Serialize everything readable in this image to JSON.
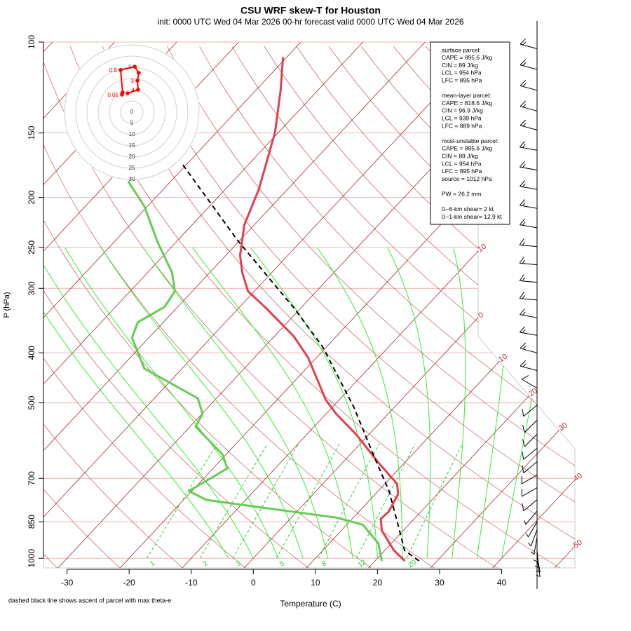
{
  "chart_data": {
    "type": "skewt",
    "title": "CSU WRF skew-T for Houston",
    "subtitle": "init: 0000 UTC Wed 04 Mar 2026     00-hr forecast valid 0000 UTC Wed 04 Mar 2026",
    "xlabel": "Temperature (C)",
    "ylabel": "P (hPa)",
    "note": "dashed black line shows ascent of parcel with max theta-e",
    "xlim": [
      -33.8,
      51.8
    ],
    "ylim": [
      1044,
      100
    ],
    "log_y": true,
    "xticks": [
      -30,
      -20,
      -10,
      0,
      10,
      20,
      30,
      40
    ],
    "yticks": [
      100,
      150,
      200,
      250,
      300,
      400,
      500,
      700,
      850,
      1000
    ],
    "isotherm_labels": [
      -10,
      0,
      10,
      20,
      30,
      40,
      50
    ],
    "mixing_ratio_labels": [
      1,
      2,
      3,
      5,
      8,
      12,
      20
    ],
    "temperature": {
      "color": "#e0404f",
      "p": [
        1012,
        966,
        885,
        839,
        813,
        752,
        718,
        653,
        577,
        525,
        493,
        409,
        372,
        328,
        304,
        280,
        259,
        226,
        193,
        150,
        124,
        107
      ],
      "values": [
        24.8,
        21.5,
        16.6,
        14.6,
        14.8,
        13.7,
        12.0,
        5.8,
        -1.9,
        -8.4,
        -12.2,
        -21.3,
        -26.8,
        -35.5,
        -41.0,
        -44.7,
        -47.7,
        -51.6,
        -54.6,
        -60.5,
        -66.0,
        -70.6
      ]
    },
    "dewpoint": {
      "color": "#66cc55",
      "p": [
        1012,
        936,
        861,
        834,
        771,
        741,
        670,
        629,
        556,
        525,
        490,
        429,
        374,
        349,
        326,
        304,
        280,
        244,
        208,
        186
      ],
      "values": [
        21.1,
        17.9,
        12.6,
        7.2,
        -16.3,
        -20.5,
        -17.7,
        -20.6,
        -29.1,
        -29.9,
        -33.0,
        -46.1,
        -52.7,
        -54.1,
        -52.1,
        -52.8,
        -56.0,
        -63.0,
        -70.5,
        -76.9
      ]
    },
    "parcel": {
      "color": "#000000",
      "dashed": true,
      "p": [
        1012,
        966,
        880,
        740,
        645,
        509,
        389,
        328,
        242,
        171
      ],
      "values": [
        27.1,
        23.2,
        19.2,
        11.7,
        4.9,
        -6.6,
        -20.7,
        -31.0,
        -50.4,
        -71.2
      ]
    },
    "hodograph": {
      "color": "#ff0000",
      "rings": [
        0,
        5,
        10,
        15,
        20,
        25,
        30
      ],
      "u": [
        -4.4,
        -4.1,
        -5.0,
        1.3,
        3.1,
        2.5,
        2.8,
        -1.9
      ],
      "v": [
        7.8,
        8.8,
        18.8,
        20.3,
        17.5,
        14.1,
        10.0,
        8.4
      ],
      "labels": [
        "0.05",
        null,
        "0.5",
        "1",
        null,
        "3",
        "4",
        null
      ]
    },
    "winds": {
      "p": [
        103,
        113,
        124,
        136,
        148,
        162,
        177,
        193,
        210,
        229,
        249,
        270,
        292,
        316,
        342,
        370,
        400,
        433,
        468,
        505,
        540,
        575,
        612,
        650,
        690,
        730,
        770,
        810,
        850,
        880,
        910,
        940,
        965,
        985,
        1005
      ],
      "direction": [
        285,
        285,
        285,
        285,
        285,
        280,
        280,
        280,
        280,
        280,
        275,
        275,
        275,
        275,
        280,
        280,
        285,
        285,
        300,
        230,
        225,
        225,
        230,
        230,
        240,
        240,
        230,
        220,
        210,
        200,
        190,
        180,
        175,
        170,
        170
      ],
      "speed": [
        15,
        15,
        15,
        15,
        15,
        15,
        15,
        15,
        15,
        15,
        15,
        15,
        15,
        15,
        15,
        15,
        15,
        15,
        10,
        10,
        10,
        10,
        10,
        10,
        10,
        10,
        10,
        5,
        5,
        5,
        5,
        5,
        5,
        5,
        5
      ]
    },
    "info": [
      [
        "surface parcel:",
        "CAPE = 895.6 J/kg",
        "CIN = 89 J/kg",
        "LCL = 954 hPa",
        "LFC = 895 hPa"
      ],
      [
        "mean-layer parcel:",
        "CAPE = 818.6 J/kg",
        "CIN = 96.9 J/kg",
        "LCL = 939 hPa",
        "LFC = 889 hPa"
      ],
      [
        "most-unstable parcel:",
        "CAPE = 895.6 J/kg",
        "CIN = 89 J/kg",
        "LCL = 954 hPa",
        "LFC = 895 hPa",
        "source = 1012 hPa"
      ],
      [
        "PW =  26.2 mm"
      ],
      [
        "0--6-km shear= 2 kt",
        "0--1-km shear= 12.9 kt"
      ]
    ]
  }
}
